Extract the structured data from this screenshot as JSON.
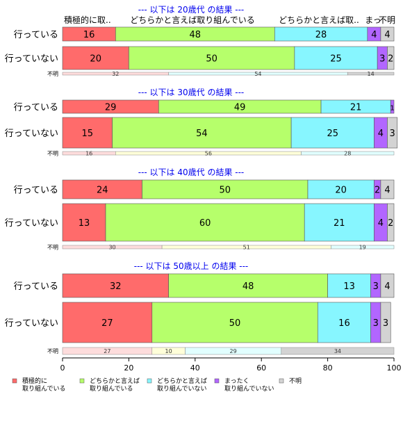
{
  "chart_data": {
    "type": "stacked-horizontal-bar",
    "xlim": [
      0,
      100
    ],
    "x_ticks": [
      "0",
      "20",
      "40",
      "60",
      "80",
      "100"
    ],
    "colors": {
      "積極的に取り組んでいる": "#FF6B6B",
      "どちらかと言えば取り組んでいる": "#B6FF6B",
      "どちらかと言えば取り組んでいない": "#87F6FF",
      "まったく取り組んでいない": "#B266FF",
      "不明": "#D3D3D3"
    },
    "header_labels": [
      "積極的に取..",
      "どちらかと言えば取り組んでいる",
      "どちらかと言えば取..",
      "まっ",
      "不明"
    ],
    "panels": [
      {
        "title": "--- 以下は 20歳代 の結果 ---",
        "rows": [
          {
            "label": "行っている",
            "values": [
              16,
              48,
              28,
              4,
              4
            ]
          },
          {
            "label": "行っていない",
            "values": [
              20,
              50,
              25,
              3,
              2
            ]
          }
        ],
        "unknown": {
          "label": "不明",
          "values": [
            32,
            0,
            54,
            0,
            14
          ]
        }
      },
      {
        "title": "--- 以下は 30歳代 の結果 ---",
        "rows": [
          {
            "label": "行っている",
            "values": [
              29,
              49,
              21,
              1,
              0
            ]
          },
          {
            "label": "行っていない",
            "values": [
              15,
              54,
              25,
              4,
              3
            ]
          }
        ],
        "unknown": {
          "label": "不明",
          "values": [
            16,
            56,
            28,
            0,
            0
          ]
        }
      },
      {
        "title": "--- 以下は 40歳代 の結果 ---",
        "rows": [
          {
            "label": "行っている",
            "values": [
              24,
              50,
              20,
              2,
              4
            ]
          },
          {
            "label": "行っていない",
            "values": [
              13,
              60,
              21,
              4,
              2
            ]
          }
        ],
        "unknown": {
          "label": "不明",
          "values": [
            30,
            51,
            19,
            0,
            0
          ]
        }
      },
      {
        "title": "--- 以下は 50歳以上 の結果 ---",
        "rows": [
          {
            "label": "行っている",
            "values": [
              32,
              48,
              13,
              3,
              4
            ]
          },
          {
            "label": "行っていない",
            "values": [
              27,
              50,
              16,
              3,
              3
            ]
          }
        ],
        "unknown": {
          "label": "不明",
          "values": [
            27,
            10,
            29,
            0,
            34
          ]
        }
      }
    ],
    "legend": [
      {
        "line1": "積極的に",
        "line2": "取り組んでいる"
      },
      {
        "line1": "どちらかと言えば",
        "line2": "取り組んでいる"
      },
      {
        "line1": "どちらかと言えば",
        "line2": "取り組んでいない"
      },
      {
        "line1": "まったく",
        "line2": "取り組んでいない"
      },
      {
        "line1": "不明",
        "line2": ""
      }
    ]
  }
}
